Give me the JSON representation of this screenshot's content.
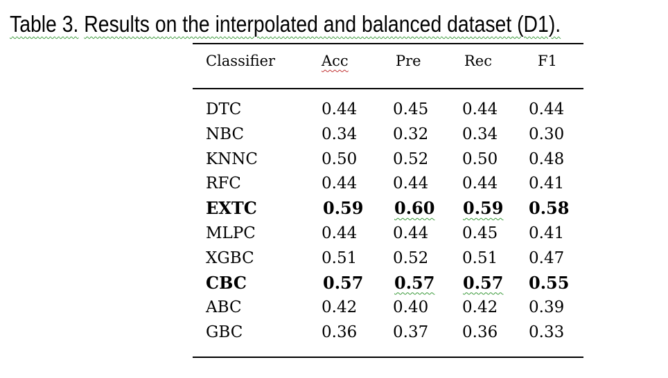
{
  "caption": {
    "table_label": "Table 3.",
    "text": "Results on the interpolated and balanced dataset (D1)."
  },
  "table": {
    "columns": [
      "Classifier",
      "Acc",
      "Pre",
      "Rec",
      "F1"
    ],
    "rows": [
      {
        "classifier": "DTC",
        "acc": "0.44",
        "pre": "0.45",
        "rec": "0.44",
        "f1": "0.44",
        "bold": false
      },
      {
        "classifier": "NBC",
        "acc": "0.34",
        "pre": "0.32",
        "rec": "0.34",
        "f1": "0.30",
        "bold": false
      },
      {
        "classifier": "KNNC",
        "acc": "0.50",
        "pre": "0.52",
        "rec": "0.50",
        "f1": "0.48",
        "bold": false
      },
      {
        "classifier": "RFC",
        "acc": "0.44",
        "pre": "0.44",
        "rec": "0.44",
        "f1": "0.41",
        "bold": false
      },
      {
        "classifier": "EXTC",
        "acc": "0.59",
        "pre": "0.60",
        "rec": "0.59",
        "f1": "0.58",
        "bold": true
      },
      {
        "classifier": "MLPC",
        "acc": "0.44",
        "pre": "0.44",
        "rec": "0.45",
        "f1": "0.41",
        "bold": false
      },
      {
        "classifier": "XGBC",
        "acc": "0.51",
        "pre": "0.52",
        "rec": "0.51",
        "f1": "0.47",
        "bold": false
      },
      {
        "classifier": "CBC",
        "acc": "0.57",
        "pre": "0.57",
        "rec": "0.57",
        "f1": "0.55",
        "bold": true
      },
      {
        "classifier": "ABC",
        "acc": "0.42",
        "pre": "0.40",
        "rec": "0.42",
        "f1": "0.39",
        "bold": false
      },
      {
        "classifier": "GBC",
        "acc": "0.36",
        "pre": "0.37",
        "rec": "0.36",
        "f1": "0.33",
        "bold": false
      }
    ]
  }
}
